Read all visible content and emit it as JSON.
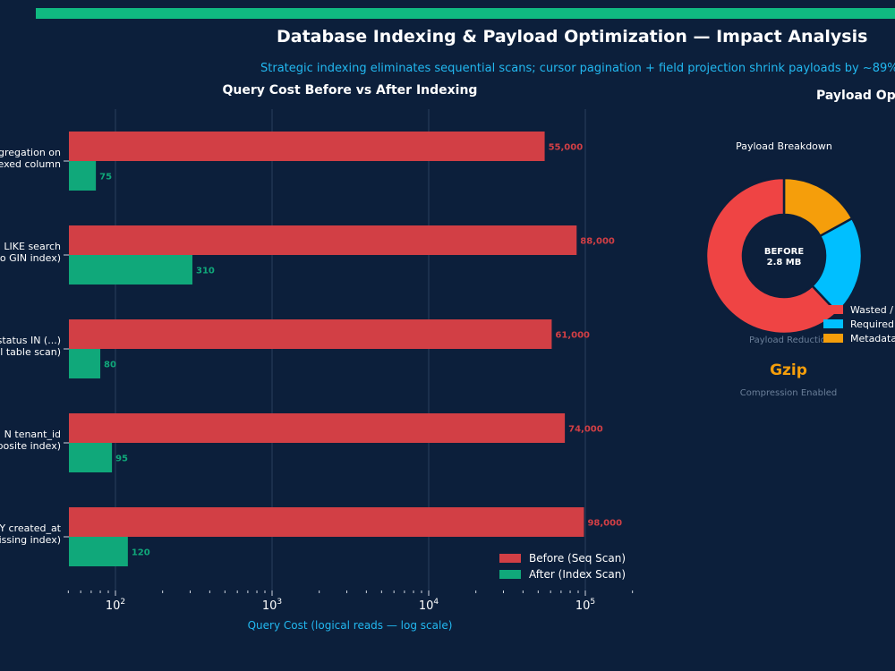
{
  "header": {
    "title": "Database Indexing & Payload Optimization — Impact Analysis",
    "subtitle": "Strategic indexing eliminates sequential scans; cursor pagination + field projection shrink payloads by ~89%",
    "right_panel_title": "Payload Op"
  },
  "colors": {
    "background": "#0c1f3b",
    "accent": "#10b981",
    "subtitle": "#22b8f0",
    "before": "#d23f45",
    "after": "#10a87a",
    "donut_red": "#ef4444",
    "donut_blue": "#00bfff",
    "donut_orange": "#f59e0b"
  },
  "chart_data": [
    {
      "type": "bar",
      "orientation": "horizontal",
      "title": "Query Cost Before vs After Indexing",
      "xlabel": "Query Cost (logical reads — log scale)",
      "xscale": "log",
      "xlim": [
        50,
        200000
      ],
      "xticks": [
        {
          "value": 100,
          "base": "10",
          "exp": "2"
        },
        {
          "value": 1000,
          "base": "10",
          "exp": "3"
        },
        {
          "value": 10000,
          "base": "10",
          "exp": "4"
        },
        {
          "value": 100000,
          "base": "10",
          "exp": "5"
        }
      ],
      "categories": [
        [
          "gregation on",
          "exed column"
        ],
        [
          "LIKE search",
          "o GIN index)"
        ],
        [
          "status IN (...)",
          "l table scan)"
        ],
        [
          "N tenant_id",
          "posite index)"
        ],
        [
          "Y created_at",
          "issing index)"
        ]
      ],
      "series": [
        {
          "name": "Before (Seq Scan)",
          "values": [
            55000,
            88000,
            61000,
            74000,
            98000
          ],
          "labels": [
            "55,000",
            "88,000",
            "61,000",
            "74,000",
            "98,000"
          ]
        },
        {
          "name": "After (Index Scan)",
          "values": [
            75,
            310,
            80,
            95,
            120
          ],
          "labels": [
            "75",
            "310",
            "80",
            "95",
            "120"
          ]
        }
      ],
      "grid": true,
      "legend": "bottom-right"
    },
    {
      "type": "pie",
      "variant": "donut",
      "title": "Payload Breakdown",
      "center_label": [
        "BEFORE",
        "2.8 MB"
      ],
      "slices": [
        {
          "name": "Wasted /",
          "value": 0.62
        },
        {
          "name": "Required",
          "value": 0.21
        },
        {
          "name": "Metadata",
          "value": 0.17
        }
      ],
      "caption": "Payload Reductio",
      "highlight": "Gzip",
      "highlight_caption": "Compression Enabled"
    }
  ]
}
